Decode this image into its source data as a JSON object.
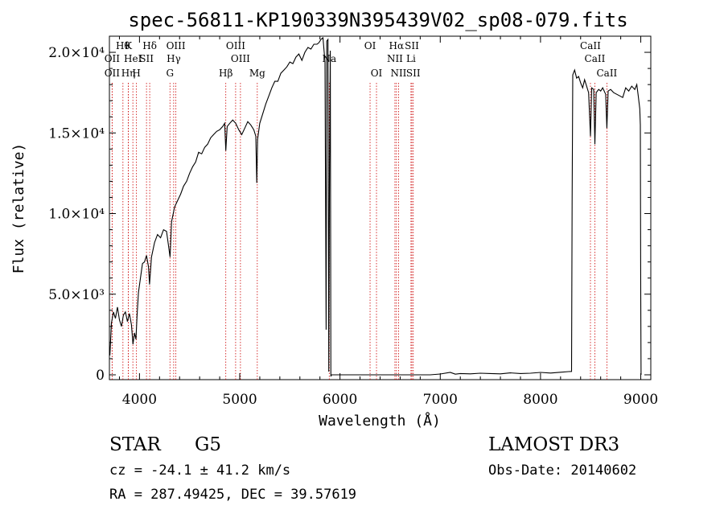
{
  "chart_data": {
    "type": "line",
    "title": "spec-56811-KP190339N395439V02_sp08-079.fits",
    "xlabel": "Wavelength (Å)",
    "ylabel": "Flux (relative)",
    "xlim": [
      3700,
      9100
    ],
    "ylim": [
      -300,
      21000
    ],
    "x_ticks": [
      {
        "value": 4000,
        "label": "4000"
      },
      {
        "value": 5000,
        "label": "5000"
      },
      {
        "value": 6000,
        "label": "6000"
      },
      {
        "value": 7000,
        "label": "7000"
      },
      {
        "value": 8000,
        "label": "8000"
      },
      {
        "value": 9000,
        "label": "9000"
      }
    ],
    "y_ticks": [
      {
        "value": 0,
        "label": "0"
      },
      {
        "value": 5000,
        "label": "5.0×10³"
      },
      {
        "value": 10000,
        "label": "1.0×10⁴"
      },
      {
        "value": 15000,
        "label": "1.5×10⁴"
      },
      {
        "value": 20000,
        "label": "2.0×10⁴"
      }
    ],
    "series": [
      {
        "color": "#000000",
        "points": [
          [
            3705,
            1200
          ],
          [
            3720,
            3200
          ],
          [
            3740,
            3900
          ],
          [
            3760,
            3500
          ],
          [
            3780,
            4200
          ],
          [
            3800,
            3400
          ],
          [
            3820,
            3000
          ],
          [
            3840,
            3700
          ],
          [
            3860,
            3900
          ],
          [
            3880,
            3300
          ],
          [
            3900,
            3800
          ],
          [
            3920,
            3100
          ],
          [
            3935,
            1900
          ],
          [
            3950,
            2600
          ],
          [
            3965,
            2200
          ],
          [
            3975,
            3600
          ],
          [
            3990,
            5100
          ],
          [
            4010,
            6000
          ],
          [
            4030,
            6900
          ],
          [
            4050,
            7000
          ],
          [
            4070,
            7400
          ],
          [
            4090,
            6700
          ],
          [
            4100,
            5600
          ],
          [
            4120,
            7300
          ],
          [
            4150,
            8200
          ],
          [
            4180,
            8700
          ],
          [
            4210,
            8500
          ],
          [
            4240,
            9000
          ],
          [
            4270,
            8900
          ],
          [
            4290,
            8000
          ],
          [
            4305,
            7300
          ],
          [
            4320,
            9500
          ],
          [
            4350,
            10400
          ],
          [
            4380,
            10800
          ],
          [
            4410,
            11200
          ],
          [
            4440,
            11700
          ],
          [
            4470,
            12000
          ],
          [
            4500,
            12500
          ],
          [
            4530,
            12900
          ],
          [
            4560,
            13200
          ],
          [
            4590,
            13800
          ],
          [
            4620,
            13700
          ],
          [
            4650,
            14100
          ],
          [
            4680,
            14300
          ],
          [
            4710,
            14700
          ],
          [
            4740,
            14900
          ],
          [
            4770,
            15100
          ],
          [
            4800,
            15200
          ],
          [
            4830,
            15400
          ],
          [
            4850,
            15600
          ],
          [
            4861,
            13900
          ],
          [
            4875,
            15400
          ],
          [
            4900,
            15600
          ],
          [
            4930,
            15800
          ],
          [
            4960,
            15600
          ],
          [
            4990,
            15200
          ],
          [
            5020,
            14900
          ],
          [
            5050,
            15300
          ],
          [
            5080,
            15700
          ],
          [
            5110,
            15500
          ],
          [
            5140,
            15200
          ],
          [
            5160,
            14800
          ],
          [
            5170,
            11900
          ],
          [
            5178,
            14600
          ],
          [
            5200,
            15600
          ],
          [
            5230,
            16200
          ],
          [
            5260,
            16800
          ],
          [
            5290,
            17300
          ],
          [
            5320,
            17800
          ],
          [
            5350,
            18200
          ],
          [
            5380,
            18200
          ],
          [
            5410,
            18700
          ],
          [
            5440,
            18900
          ],
          [
            5470,
            19100
          ],
          [
            5500,
            19400
          ],
          [
            5530,
            19300
          ],
          [
            5560,
            19700
          ],
          [
            5590,
            19900
          ],
          [
            5620,
            19500
          ],
          [
            5650,
            20000
          ],
          [
            5680,
            20300
          ],
          [
            5710,
            20200
          ],
          [
            5740,
            20500
          ],
          [
            5770,
            20500
          ],
          [
            5790,
            20600
          ],
          [
            5810,
            20800
          ],
          [
            5830,
            20900
          ],
          [
            5850,
            19400
          ],
          [
            5862,
            2800
          ],
          [
            5868,
            20700
          ],
          [
            5880,
            20800
          ],
          [
            5888,
            200
          ],
          [
            5895,
            13000
          ],
          [
            5903,
            20100
          ],
          [
            5909,
            -100
          ],
          [
            5915,
            0
          ],
          [
            5950,
            0
          ],
          [
            6000,
            0
          ],
          [
            6100,
            0
          ],
          [
            6200,
            0
          ],
          [
            6300,
            0
          ],
          [
            6400,
            0
          ],
          [
            6500,
            0
          ],
          [
            6600,
            0
          ],
          [
            6700,
            0
          ],
          [
            6800,
            0
          ],
          [
            6900,
            0
          ],
          [
            7000,
            50
          ],
          [
            7100,
            150
          ],
          [
            7150,
            40
          ],
          [
            7200,
            80
          ],
          [
            7300,
            60
          ],
          [
            7400,
            100
          ],
          [
            7500,
            80
          ],
          [
            7600,
            60
          ],
          [
            7700,
            120
          ],
          [
            7800,
            80
          ],
          [
            7900,
            100
          ],
          [
            8000,
            150
          ],
          [
            8100,
            110
          ],
          [
            8200,
            160
          ],
          [
            8280,
            200
          ],
          [
            8310,
            210
          ],
          [
            8315,
            10700
          ],
          [
            8322,
            18600
          ],
          [
            8340,
            18900
          ],
          [
            8360,
            18400
          ],
          [
            8380,
            18500
          ],
          [
            8400,
            18100
          ],
          [
            8420,
            17800
          ],
          [
            8440,
            18300
          ],
          [
            8460,
            17900
          ],
          [
            8480,
            17500
          ],
          [
            8498,
            14800
          ],
          [
            8510,
            17800
          ],
          [
            8530,
            17700
          ],
          [
            8542,
            14300
          ],
          [
            8555,
            17500
          ],
          [
            8580,
            17700
          ],
          [
            8600,
            17600
          ],
          [
            8620,
            17800
          ],
          [
            8650,
            17400
          ],
          [
            8662,
            15300
          ],
          [
            8675,
            17600
          ],
          [
            8700,
            17700
          ],
          [
            8730,
            17500
          ],
          [
            8760,
            17400
          ],
          [
            8790,
            17300
          ],
          [
            8820,
            17200
          ],
          [
            8850,
            17800
          ],
          [
            8880,
            17600
          ],
          [
            8910,
            17900
          ],
          [
            8940,
            17700
          ],
          [
            8960,
            18000
          ],
          [
            8975,
            17300
          ],
          [
            8990,
            16500
          ],
          [
            8996,
            15500
          ],
          [
            9000,
            5000
          ],
          [
            9003,
            0
          ]
        ]
      }
    ],
    "line_markers": [
      {
        "x": 3835,
        "label": "Hθ",
        "row": 0
      },
      {
        "x": 3889,
        "label": "K",
        "row": 0
      },
      {
        "x": 4102,
        "label": "Hδ",
        "row": 0
      },
      {
        "x": 4363,
        "label": "OIII",
        "row": 0
      },
      {
        "x": 4959,
        "label": "OIII",
        "row": 0
      },
      {
        "x": 6300,
        "label": "OI",
        "row": 0
      },
      {
        "x": 6563,
        "label": "Hα",
        "row": 0
      },
      {
        "x": 6717,
        "label": "SII",
        "row": 0
      },
      {
        "x": 8498,
        "label": "CaII",
        "row": 0
      },
      {
        "x": 3727,
        "label": "OII",
        "row": 1
      },
      {
        "x": 3934,
        "label": "HeI",
        "row": 1
      },
      {
        "x": 4070,
        "label": "SII",
        "row": 1
      },
      {
        "x": 4341,
        "label": "Hγ",
        "row": 1
      },
      {
        "x": 5007,
        "label": "OIII",
        "row": 1
      },
      {
        "x": 5893,
        "label": "Na",
        "row": 1
      },
      {
        "x": 6548,
        "label": "NII",
        "row": 1
      },
      {
        "x": 6708,
        "label": "Li",
        "row": 1
      },
      {
        "x": 8542,
        "label": "CaII",
        "row": 1
      },
      {
        "x": 3727,
        "label": "OII",
        "row": 2
      },
      {
        "x": 3970,
        "label": "H",
        "row": 2
      },
      {
        "x": 3889,
        "label": "Hη",
        "row": 2
      },
      {
        "x": 4304,
        "label": "G",
        "row": 2
      },
      {
        "x": 4861,
        "label": "Hβ",
        "row": 2
      },
      {
        "x": 5175,
        "label": "Mg",
        "row": 2
      },
      {
        "x": 6364,
        "label": "OI",
        "row": 2
      },
      {
        "x": 6584,
        "label": "NII",
        "row": 2
      },
      {
        "x": 6731,
        "label": "SII",
        "row": 2
      },
      {
        "x": 8662,
        "label": "CaII",
        "row": 2
      }
    ],
    "grid": false,
    "legend": "none"
  },
  "info": {
    "object_class": "STAR",
    "subclass": "G5",
    "survey": "LAMOST DR3",
    "redshift_line": "cz = -24.1 ± 41.2 km/s",
    "obs_date_line": "Obs-Date: 20140602",
    "coords_line": "RA = 287.49425, DEC =  39.57619"
  },
  "colors": {
    "spectrum": "#000000",
    "marker_lines": "#cc0000",
    "axes": "#000000"
  }
}
